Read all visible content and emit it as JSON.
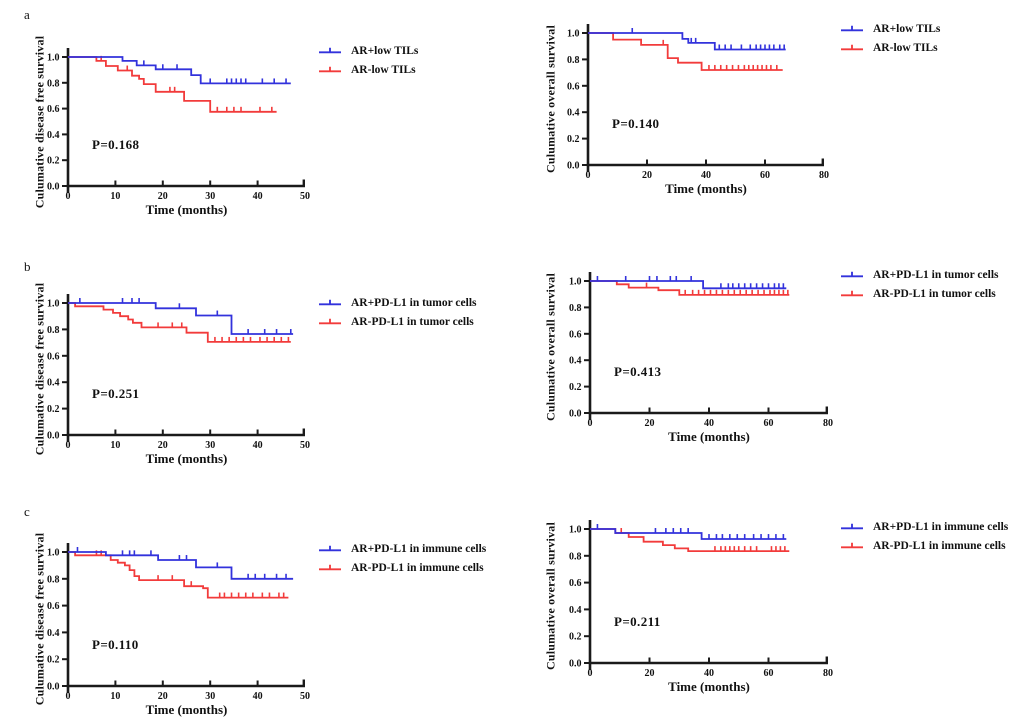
{
  "figure": {
    "background": "#ffffff",
    "axis_color": "#1a1a1a",
    "blue": "#3232dc",
    "red": "#f23b3b"
  },
  "panels": [
    {
      "label": "a"
    },
    {
      "label": "b"
    },
    {
      "label": "c"
    }
  ],
  "chart_data": [
    {
      "type": "line",
      "subtype": "kaplan-meier-step",
      "panel": "a",
      "position": "left",
      "ylabel": "Culumative disease free survival",
      "xlabel": "Time (months)",
      "p_label": "P=0.168",
      "xlim": [
        0,
        50
      ],
      "ylim": [
        0.0,
        1.0
      ],
      "xticks": [
        0,
        10,
        20,
        30,
        40,
        50
      ],
      "yticks": [
        "0.0",
        "0.2",
        "0.4",
        "0.6",
        "0.8",
        "1.0"
      ],
      "grid": false,
      "legend_position": "right",
      "series": [
        {
          "name": "AR+low TILs",
          "color": "#3232dc",
          "steps": [
            [
              0,
              1.0
            ],
            [
              11.5,
              1.0
            ],
            [
              11.5,
              0.97
            ],
            [
              14.5,
              0.97
            ],
            [
              14.5,
              0.935
            ],
            [
              18.5,
              0.935
            ],
            [
              18.5,
              0.905
            ],
            [
              26,
              0.905
            ],
            [
              26,
              0.86
            ],
            [
              28,
              0.86
            ],
            [
              28,
              0.795
            ],
            [
              47,
              0.795
            ]
          ],
          "censors": [
            16,
            20,
            23,
            30,
            33.5,
            34.5,
            35.5,
            36.5,
            37.5,
            41,
            43.5,
            46
          ]
        },
        {
          "name": "AR-low TILs",
          "color": "#f23b3b",
          "steps": [
            [
              0,
              1.0
            ],
            [
              6,
              1.0
            ],
            [
              6,
              0.97
            ],
            [
              8,
              0.97
            ],
            [
              8,
              0.93
            ],
            [
              10.5,
              0.93
            ],
            [
              10.5,
              0.895
            ],
            [
              13.5,
              0.895
            ],
            [
              13.5,
              0.855
            ],
            [
              15,
              0.855
            ],
            [
              15,
              0.83
            ],
            [
              16,
              0.83
            ],
            [
              16,
              0.79
            ],
            [
              18.5,
              0.79
            ],
            [
              18.5,
              0.73
            ],
            [
              24.5,
              0.73
            ],
            [
              24.5,
              0.66
            ],
            [
              30,
              0.66
            ],
            [
              30,
              0.575
            ],
            [
              44,
              0.575
            ]
          ],
          "censors": [
            7,
            12.5,
            21.5,
            22.5,
            31.5,
            33.5,
            35,
            36.5,
            40.5,
            43
          ]
        }
      ]
    },
    {
      "type": "line",
      "subtype": "kaplan-meier-step",
      "panel": "a",
      "position": "right",
      "ylabel": "Culumative overall survival",
      "xlabel": "Time (months)",
      "p_label": "P=0.140",
      "xlim": [
        0,
        80
      ],
      "ylim": [
        0.0,
        1.0
      ],
      "xticks": [
        0,
        20,
        40,
        60,
        80
      ],
      "yticks": [
        "0.0",
        "0.2",
        "0.4",
        "0.6",
        "0.8",
        "1.0"
      ],
      "grid": false,
      "legend_position": "right",
      "series": [
        {
          "name": "AR+low TILs",
          "color": "#3232dc",
          "steps": [
            [
              0,
              1.0
            ],
            [
              32,
              1.0
            ],
            [
              32,
              0.955
            ],
            [
              34,
              0.955
            ],
            [
              34,
              0.925
            ],
            [
              43,
              0.925
            ],
            [
              43,
              0.875
            ],
            [
              67,
              0.875
            ]
          ],
          "censors": [
            15,
            35,
            36.5,
            44.5,
            46.5,
            48.5,
            52,
            55,
            57,
            58.5,
            60,
            61.5,
            63,
            65,
            66.5
          ]
        },
        {
          "name": "AR-low TILs",
          "color": "#f23b3b",
          "steps": [
            [
              0,
              1.0
            ],
            [
              8.5,
              1.0
            ],
            [
              8.5,
              0.95
            ],
            [
              18,
              0.95
            ],
            [
              18,
              0.91
            ],
            [
              27,
              0.91
            ],
            [
              27,
              0.81
            ],
            [
              30.5,
              0.81
            ],
            [
              30.5,
              0.775
            ],
            [
              38.5,
              0.775
            ],
            [
              38.5,
              0.72
            ],
            [
              66,
              0.72
            ]
          ],
          "censors": [
            25.5,
            41,
            43,
            45,
            47,
            49,
            51,
            53,
            54.5,
            56,
            57.5,
            59,
            60.5,
            62,
            64
          ]
        }
      ]
    },
    {
      "type": "line",
      "subtype": "kaplan-meier-step",
      "panel": "b",
      "position": "left",
      "ylabel": "Culumative disease free survival",
      "xlabel": "Time (months)",
      "p_label": "P=0.251",
      "xlim": [
        0,
        50
      ],
      "ylim": [
        0.0,
        1.0
      ],
      "xticks": [
        0,
        10,
        20,
        30,
        40,
        50
      ],
      "yticks": [
        "0.0",
        "0.2",
        "0.4",
        "0.6",
        "0.8",
        "1.0"
      ],
      "grid": false,
      "legend_position": "right",
      "series": [
        {
          "name": "AR+PD-L1 in tumor cells",
          "color": "#3232dc",
          "steps": [
            [
              0,
              1.0
            ],
            [
              18.5,
              1.0
            ],
            [
              18.5,
              0.96
            ],
            [
              27,
              0.96
            ],
            [
              27,
              0.905
            ],
            [
              34.5,
              0.905
            ],
            [
              34.5,
              0.765
            ],
            [
              47.5,
              0.765
            ]
          ],
          "censors": [
            2.5,
            11.5,
            13.5,
            15,
            23.5,
            31.5,
            38,
            41.5,
            44,
            47
          ]
        },
        {
          "name": "AR-PD-L1 in tumor cells",
          "color": "#f23b3b",
          "steps": [
            [
              0,
              1.0
            ],
            [
              1.5,
              1.0
            ],
            [
              1.5,
              0.975
            ],
            [
              7.5,
              0.975
            ],
            [
              7.5,
              0.95
            ],
            [
              9.5,
              0.95
            ],
            [
              9.5,
              0.925
            ],
            [
              11,
              0.925
            ],
            [
              11,
              0.9
            ],
            [
              12.7,
              0.9
            ],
            [
              12.7,
              0.875
            ],
            [
              13.7,
              0.875
            ],
            [
              13.7,
              0.85
            ],
            [
              15.5,
              0.85
            ],
            [
              15.5,
              0.815
            ],
            [
              25,
              0.815
            ],
            [
              25,
              0.775
            ],
            [
              29.5,
              0.775
            ],
            [
              29.5,
              0.705
            ],
            [
              47,
              0.705
            ]
          ],
          "censors": [
            19,
            22,
            24,
            31,
            32.5,
            34,
            35.5,
            37,
            38.5,
            40.5,
            42,
            43.5,
            45,
            46.5
          ]
        }
      ]
    },
    {
      "type": "line",
      "subtype": "kaplan-meier-step",
      "panel": "b",
      "position": "right",
      "ylabel": "Culumative overall survival",
      "xlabel": "Time (months)",
      "p_label": "P=0.413",
      "xlim": [
        0,
        80
      ],
      "ylim": [
        0.0,
        1.0
      ],
      "xticks": [
        0,
        20,
        40,
        60,
        80
      ],
      "yticks": [
        "0.0",
        "0.2",
        "0.4",
        "0.6",
        "0.8",
        "1.0"
      ],
      "grid": false,
      "legend_position": "right",
      "series": [
        {
          "name": "AR+PD-L1 in tumor cells",
          "color": "#3232dc",
          "steps": [
            [
              0,
              1.0
            ],
            [
              38,
              1.0
            ],
            [
              38,
              0.945
            ],
            [
              66,
              0.945
            ]
          ],
          "censors": [
            2.5,
            12,
            20,
            22.5,
            27,
            29,
            34,
            44,
            46.5,
            48,
            50,
            52,
            54,
            56,
            58,
            60,
            62,
            63.5,
            65
          ]
        },
        {
          "name": "AR-PD-L1 in tumor cells",
          "color": "#f23b3b",
          "steps": [
            [
              0,
              1.0
            ],
            [
              9,
              1.0
            ],
            [
              9,
              0.975
            ],
            [
              13,
              0.975
            ],
            [
              13,
              0.95
            ],
            [
              23,
              0.95
            ],
            [
              23,
              0.93
            ],
            [
              30,
              0.93
            ],
            [
              30,
              0.895
            ],
            [
              67,
              0.895
            ]
          ],
          "censors": [
            19,
            32,
            34.5,
            36.5,
            38.5,
            40.5,
            42.5,
            44.5,
            46.5,
            48.5,
            50.5,
            52.5,
            54.5,
            56.5,
            58.5,
            60.5,
            62,
            63.5,
            65,
            66.5
          ]
        }
      ]
    },
    {
      "type": "line",
      "subtype": "kaplan-meier-step",
      "panel": "c",
      "position": "left",
      "ylabel": "Culumative disease free survival",
      "xlabel": "Time (months)",
      "p_label": "P=0.110",
      "xlim": [
        0,
        50
      ],
      "ylim": [
        0.0,
        1.0
      ],
      "xticks": [
        0,
        10,
        20,
        30,
        40,
        50
      ],
      "yticks": [
        "0.0",
        "0.2",
        "0.4",
        "0.6",
        "0.8",
        "1.0"
      ],
      "grid": false,
      "legend_position": "right",
      "series": [
        {
          "name": "AR+PD-L1 in immune cells",
          "color": "#3232dc",
          "steps": [
            [
              0,
              1.0
            ],
            [
              8,
              1.0
            ],
            [
              8,
              0.975
            ],
            [
              19,
              0.975
            ],
            [
              19,
              0.94
            ],
            [
              27,
              0.94
            ],
            [
              27,
              0.885
            ],
            [
              34.5,
              0.885
            ],
            [
              34.5,
              0.8
            ],
            [
              47.5,
              0.8
            ]
          ],
          "censors": [
            2,
            11.5,
            13,
            14,
            17.5,
            23.5,
            25,
            31.5,
            38,
            39.5,
            41.5,
            44,
            46
          ]
        },
        {
          "name": "AR-PD-L1 in immune cells",
          "color": "#f23b3b",
          "steps": [
            [
              0,
              1.0
            ],
            [
              1.5,
              1.0
            ],
            [
              1.5,
              0.975
            ],
            [
              9,
              0.975
            ],
            [
              9,
              0.94
            ],
            [
              10.5,
              0.94
            ],
            [
              10.5,
              0.92
            ],
            [
              12,
              0.92
            ],
            [
              12,
              0.9
            ],
            [
              13,
              0.9
            ],
            [
              13,
              0.865
            ],
            [
              14,
              0.865
            ],
            [
              14,
              0.82
            ],
            [
              15,
              0.82
            ],
            [
              15,
              0.79
            ],
            [
              24.5,
              0.79
            ],
            [
              24.5,
              0.745
            ],
            [
              28.5,
              0.745
            ],
            [
              28.5,
              0.73
            ],
            [
              29.5,
              0.73
            ],
            [
              29.5,
              0.66
            ],
            [
              46.5,
              0.66
            ]
          ],
          "censors": [
            6,
            7,
            19,
            22,
            26,
            32,
            33,
            34.5,
            36,
            37.5,
            39,
            41,
            42.5,
            44.5,
            45.5
          ]
        }
      ]
    },
    {
      "type": "line",
      "subtype": "kaplan-meier-step",
      "panel": "c",
      "position": "right",
      "ylabel": "Culumative overall survival",
      "xlabel": "Time (months)",
      "p_label": "P=0.211",
      "xlim": [
        0,
        80
      ],
      "ylim": [
        0.0,
        1.0
      ],
      "xticks": [
        0,
        20,
        40,
        60,
        80
      ],
      "yticks": [
        "0.0",
        "0.2",
        "0.4",
        "0.6",
        "0.8",
        "1.0"
      ],
      "grid": false,
      "legend_position": "right",
      "series": [
        {
          "name": "AR+PD-L1 in immune cells",
          "color": "#3232dc",
          "steps": [
            [
              0,
              1.0
            ],
            [
              8.5,
              1.0
            ],
            [
              8.5,
              0.97
            ],
            [
              37.5,
              0.97
            ],
            [
              37.5,
              0.925
            ],
            [
              66,
              0.925
            ]
          ],
          "censors": [
            2.5,
            22,
            25.5,
            28,
            30.5,
            33,
            40,
            42.5,
            44.5,
            47,
            49.5,
            52,
            55,
            57.5,
            60,
            62.5,
            65
          ]
        },
        {
          "name": "AR-PD-L1 in immune cells",
          "color": "#f23b3b",
          "steps": [
            [
              0,
              1.0
            ],
            [
              8.5,
              1.0
            ],
            [
              8.5,
              0.97
            ],
            [
              13,
              0.97
            ],
            [
              13,
              0.94
            ],
            [
              18,
              0.94
            ],
            [
              18,
              0.905
            ],
            [
              24.5,
              0.905
            ],
            [
              24.5,
              0.88
            ],
            [
              28.5,
              0.88
            ],
            [
              28.5,
              0.855
            ],
            [
              33,
              0.855
            ],
            [
              33,
              0.835
            ],
            [
              67,
              0.835
            ]
          ],
          "censors": [
            10.5,
            42,
            44,
            45.5,
            47,
            48.5,
            50,
            52,
            54,
            56,
            61,
            62.5,
            64,
            65.5
          ]
        }
      ]
    }
  ]
}
